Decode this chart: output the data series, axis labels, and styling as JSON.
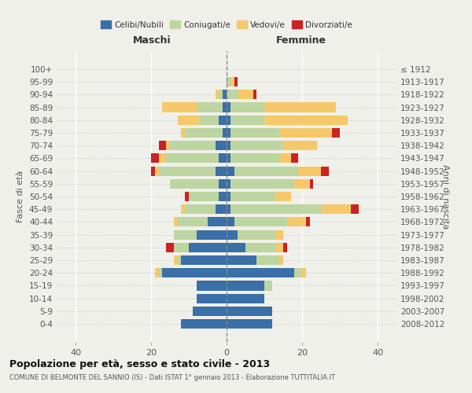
{
  "age_groups": [
    "0-4",
    "5-9",
    "10-14",
    "15-19",
    "20-24",
    "25-29",
    "30-34",
    "35-39",
    "40-44",
    "45-49",
    "50-54",
    "55-59",
    "60-64",
    "65-69",
    "70-74",
    "75-79",
    "80-84",
    "85-89",
    "90-94",
    "95-99",
    "100+"
  ],
  "birth_years": [
    "2008-2012",
    "2003-2007",
    "1998-2002",
    "1993-1997",
    "1988-1992",
    "1983-1987",
    "1978-1982",
    "1973-1977",
    "1968-1972",
    "1963-1967",
    "1958-1962",
    "1953-1957",
    "1948-1952",
    "1943-1947",
    "1938-1942",
    "1933-1937",
    "1928-1932",
    "1923-1927",
    "1918-1922",
    "1913-1917",
    "≤ 1912"
  ],
  "colors": {
    "celibe": "#3a6fa8",
    "coniugato": "#bdd5a0",
    "vedovo": "#f5c96a",
    "divorziato": "#cc2222"
  },
  "maschi": {
    "celibe": [
      12,
      9,
      8,
      8,
      17,
      12,
      10,
      8,
      5,
      3,
      2,
      2,
      3,
      2,
      3,
      1,
      2,
      1,
      1,
      0,
      0
    ],
    "coniugato": [
      0,
      0,
      0,
      0,
      1,
      1,
      4,
      6,
      8,
      8,
      8,
      13,
      15,
      14,
      12,
      10,
      5,
      7,
      1,
      0,
      0
    ],
    "vedovo": [
      0,
      0,
      0,
      0,
      1,
      1,
      0,
      0,
      1,
      1,
      0,
      0,
      1,
      2,
      1,
      1,
      6,
      9,
      1,
      0,
      0
    ],
    "divorziato": [
      0,
      0,
      0,
      0,
      0,
      0,
      2,
      0,
      0,
      0,
      1,
      0,
      1,
      2,
      2,
      0,
      0,
      0,
      0,
      0,
      0
    ]
  },
  "femmine": {
    "nubile": [
      12,
      12,
      10,
      10,
      18,
      8,
      5,
      3,
      2,
      1,
      1,
      1,
      2,
      1,
      1,
      1,
      1,
      1,
      0,
      0,
      0
    ],
    "coniugata": [
      0,
      0,
      0,
      2,
      2,
      6,
      8,
      10,
      14,
      24,
      12,
      17,
      17,
      13,
      14,
      13,
      9,
      9,
      3,
      1,
      0
    ],
    "vedova": [
      0,
      0,
      0,
      0,
      1,
      1,
      2,
      2,
      5,
      8,
      4,
      4,
      6,
      3,
      9,
      14,
      22,
      19,
      4,
      1,
      0
    ],
    "divorziata": [
      0,
      0,
      0,
      0,
      0,
      0,
      1,
      0,
      1,
      2,
      0,
      1,
      2,
      2,
      0,
      2,
      0,
      0,
      1,
      1,
      0
    ]
  },
  "xlim": 45,
  "title": "Popolazione per età, sesso e stato civile - 2013",
  "subtitle": "COMUNE DI BELMONTE DEL SANNIO (IS) - Dati ISTAT 1° gennaio 2013 - Elaborazione TUTTITALIA.IT",
  "ylabel_left": "Fasce di età",
  "ylabel_right": "Anni di nascita",
  "xlabel_maschi": "Maschi",
  "xlabel_femmine": "Femmine",
  "legend_labels": [
    "Celibi/Nubili",
    "Coniugati/e",
    "Vedovi/e",
    "Divorziati/e"
  ],
  "bg_color": "#f0f0eb"
}
